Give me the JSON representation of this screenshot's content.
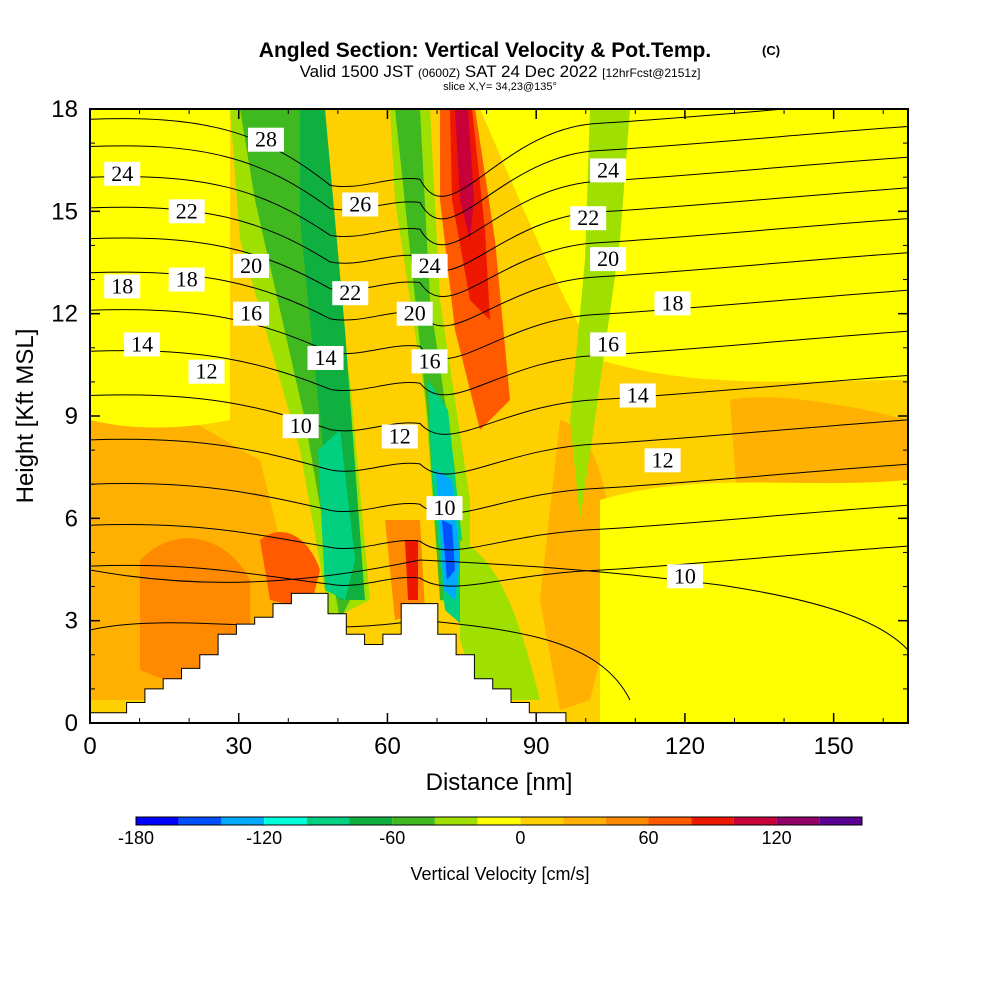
{
  "title": {
    "main": "Angled Section: Vertical Velocity & Pot.Temp.",
    "main_suffix": "(C)",
    "valid_prefix": "Valid 1500 JST",
    "valid_zulu": "(0600Z)",
    "valid_date": "SAT 24 Dec 2022",
    "valid_fcst": "[12hrFcst@2151z]",
    "slice": "slice X,Y= 34,23@135°"
  },
  "chart_data": {
    "type": "heatmap",
    "xlabel": "Distance [nm]",
    "ylabel": "Height [Kft MSL]",
    "xlim": [
      0,
      165
    ],
    "ylim": [
      0,
      18
    ],
    "x_ticks": [
      "0",
      "30",
      "60",
      "90",
      "120",
      "150"
    ],
    "y_ticks": [
      "0",
      "3",
      "6",
      "9",
      "12",
      "15",
      "18"
    ],
    "colorbar": {
      "label": "Vertical Velocity [cm/s]",
      "levels": [
        -180,
        -160,
        -140,
        -120,
        -100,
        -80,
        -60,
        -40,
        -20,
        0,
        20,
        40,
        60,
        80,
        100,
        120,
        140,
        160
      ],
      "tick_labels": [
        "-180",
        "-120",
        "-60",
        "0",
        "60",
        "120"
      ],
      "colors": [
        "#0000ff",
        "#0050ff",
        "#00aaff",
        "#00ffdd",
        "#00d080",
        "#10b040",
        "#40b820",
        "#a0e000",
        "#ffff00",
        "#ffd000",
        "#ffb000",
        "#ff8a00",
        "#ff5a00",
        "#ee1800",
        "#c8003a",
        "#900068",
        "#5a0090"
      ]
    },
    "velocity_regions": [
      {
        "name": "weak updraft background",
        "value_cm_s": 10
      },
      {
        "name": "downdraft core near 46 nm",
        "value_cm_s": -90
      },
      {
        "name": "downdraft core near 72 nm",
        "value_cm_s": -170
      },
      {
        "name": "updraft core near 75 nm",
        "value_cm_s": 150
      }
    ],
    "theta_contour_labels": [
      {
        "text": "28",
        "x": 35.5,
        "y": 17.1
      },
      {
        "text": "24",
        "x": 6.5,
        "y": 16.1
      },
      {
        "text": "26",
        "x": 54.5,
        "y": 15.2
      },
      {
        "text": "22",
        "x": 19.5,
        "y": 15.0
      },
      {
        "text": "20",
        "x": 32.5,
        "y": 13.4
      },
      {
        "text": "24",
        "x": 68.5,
        "y": 13.4
      },
      {
        "text": "18",
        "x": 19.5,
        "y": 13.0
      },
      {
        "text": "18",
        "x": 6.5,
        "y": 12.8
      },
      {
        "text": "22",
        "x": 52.5,
        "y": 12.6
      },
      {
        "text": "16",
        "x": 32.5,
        "y": 12.0
      },
      {
        "text": "20",
        "x": 65.5,
        "y": 12.0
      },
      {
        "text": "14",
        "x": 10.5,
        "y": 11.1
      },
      {
        "text": "14",
        "x": 47.5,
        "y": 10.7
      },
      {
        "text": "16",
        "x": 68.5,
        "y": 10.6
      },
      {
        "text": "12",
        "x": 23.5,
        "y": 10.3
      },
      {
        "text": "10",
        "x": 42.5,
        "y": 8.7
      },
      {
        "text": "12",
        "x": 62.5,
        "y": 8.4
      },
      {
        "text": "10",
        "x": 71.5,
        "y": 6.3
      },
      {
        "text": "24",
        "x": 104.5,
        "y": 16.2
      },
      {
        "text": "22",
        "x": 100.5,
        "y": 14.8
      },
      {
        "text": "20",
        "x": 104.5,
        "y": 13.6
      },
      {
        "text": "18",
        "x": 117.5,
        "y": 12.3
      },
      {
        "text": "16",
        "x": 104.5,
        "y": 11.1
      },
      {
        "text": "14",
        "x": 110.5,
        "y": 9.6
      },
      {
        "text": "12",
        "x": 115.5,
        "y": 7.7
      },
      {
        "text": "10",
        "x": 120.0,
        "y": 4.3
      }
    ],
    "terrain_top_kft": [
      0.3,
      0.3,
      0.6,
      1.0,
      1.3,
      1.6,
      2.0,
      2.6,
      2.9,
      3.1,
      3.5,
      3.8,
      3.8,
      3.2,
      2.6,
      2.3,
      2.6,
      3.5,
      3.5,
      2.6,
      2.0,
      1.3,
      1.0,
      0.6,
      0.3,
      0.3
    ]
  }
}
